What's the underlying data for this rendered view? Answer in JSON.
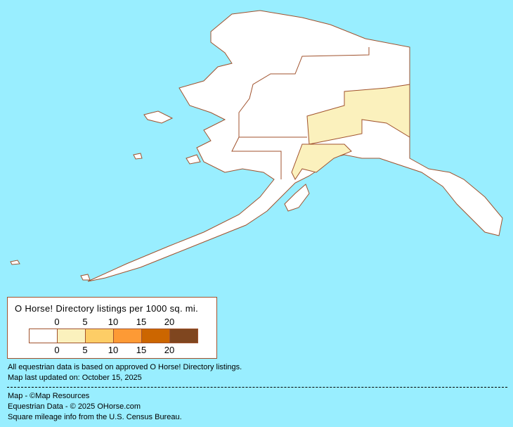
{
  "legend": {
    "title": "O Horse! Directory listings per 1000 sq. mi.",
    "top_ticks": [
      "0",
      "5",
      "10",
      "15",
      "20"
    ],
    "bottom_ticks": [
      "0",
      "5",
      "10",
      "15",
      "20"
    ],
    "colors": [
      "#FFFFFF",
      "#FBF1BD",
      "#FDCD66",
      "#FD9A35",
      "#CC6600",
      "#7F461F"
    ]
  },
  "map": {
    "water_color": "#99EEFF",
    "border_color": "#A0522D",
    "highlighted_class_color": "#FBF1BD"
  },
  "notes": {
    "data_basis": "All equestrian data is based on approved O Horse! Directory listings.",
    "updated": "Map last updated on: October 15, 2025",
    "map_credit": "Map - ©Map Resources",
    "data_credit": "Equestrian Data - © 2025 OHorse.com",
    "census": "Square mileage info from the U.S. Census Bureau."
  }
}
